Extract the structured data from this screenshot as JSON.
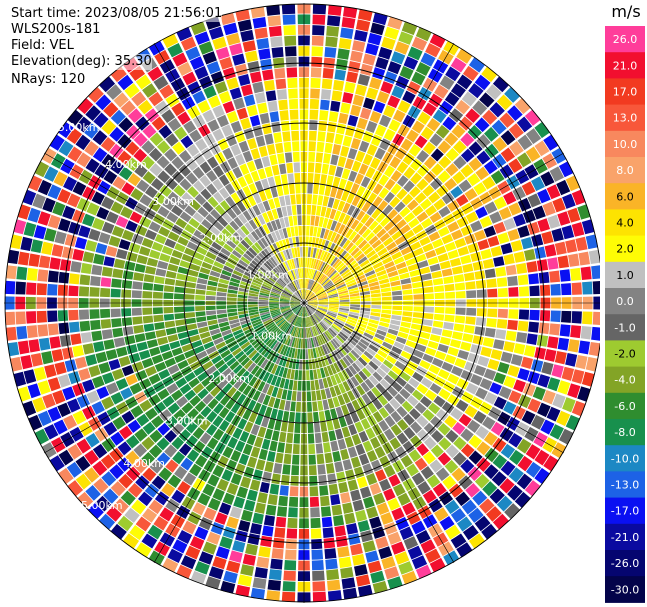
{
  "info": {
    "start_time": "Start time: 2023/08/05 21:56:01",
    "device": "WLS200s-181",
    "field": "Field: VEL",
    "elevation": "Elevation(deg): 35.30",
    "nrays": "NRays: 120"
  },
  "chart_data": {
    "type": "heatmap",
    "projection": "polar-ppi",
    "field": "VEL",
    "units": "m/s",
    "elevation_deg": 35.3,
    "n_rays": 120,
    "max_range_km": 5.0,
    "range_rings_km": [
      1.0,
      2.0,
      3.0,
      4.0,
      5.0
    ],
    "ring_labels": [
      "1.00km",
      "2.00km",
      "3.00km",
      "4.00km",
      "5.00km"
    ],
    "spoke_angles_deg": [
      0,
      30,
      60,
      90,
      120,
      150,
      180,
      210,
      240,
      270,
      300,
      330
    ],
    "pattern": "Approaching (negative, green) velocities dominate the lower-left half; receding (positive, yellow/orange) velocities dominate the upper-right half; outer ranges beyond ~4 km are noisy with random colors.",
    "colorbar": {
      "title": "m/s",
      "ticks": [
        "26.0",
        "21.0",
        "17.0",
        "13.0",
        "10.0",
        "8.0",
        "6.0",
        "4.0",
        "2.0",
        "1.0",
        "0.0",
        "-1.0",
        "-2.0",
        "-4.0",
        "-6.0",
        "-8.0",
        "-10.0",
        "-13.0",
        "-17.0",
        "-21.0",
        "-26.0",
        "-30.0"
      ],
      "colors": [
        "#ff3d9a",
        "#f20f2f",
        "#f23a20",
        "#f8573a",
        "#f8885e",
        "#f9a36a",
        "#fab427",
        "#fde301",
        "#fefc05",
        "#c0c0c0",
        "#838383",
        "#656565",
        "#9ecb30",
        "#83a426",
        "#2f8d2f",
        "#18904d",
        "#1c88c4",
        "#1d62e6",
        "#0a10f2",
        "#0a0aa0",
        "#050570",
        "#03034a"
      ]
    }
  }
}
